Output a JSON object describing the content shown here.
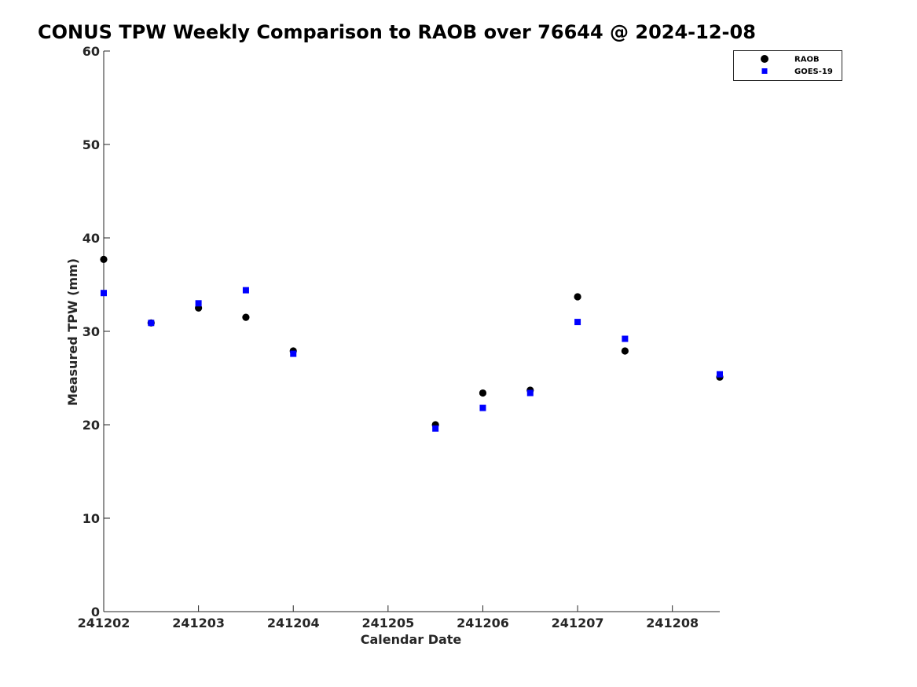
{
  "chart_data": {
    "type": "scatter",
    "title": "CONUS TPW Weekly Comparison to RAOB over 76644 @ 2024-12-08",
    "xlabel": "Calendar Date",
    "ylabel": "Measured TPW (mm)",
    "xlim": [
      0,
      6.5
    ],
    "ylim": [
      0,
      60
    ],
    "x_ticks": [
      {
        "value": 0,
        "label": "241202"
      },
      {
        "value": 1,
        "label": "241203"
      },
      {
        "value": 2,
        "label": "241204"
      },
      {
        "value": 3,
        "label": "241205"
      },
      {
        "value": 4,
        "label": "241206"
      },
      {
        "value": 5,
        "label": "241207"
      },
      {
        "value": 6,
        "label": "241208"
      }
    ],
    "y_ticks": [
      {
        "value": 0,
        "label": "0"
      },
      {
        "value": 10,
        "label": "10"
      },
      {
        "value": 20,
        "label": "20"
      },
      {
        "value": 30,
        "label": "30"
      },
      {
        "value": 40,
        "label": "40"
      },
      {
        "value": 50,
        "label": "50"
      },
      {
        "value": 60,
        "label": "60"
      }
    ],
    "grid": false,
    "legend_position": "top-right",
    "series": [
      {
        "name": "RAOB",
        "marker": "circle",
        "color": "#000000",
        "x": [
          0,
          0.5,
          1,
          1.5,
          2,
          3.5,
          4,
          4.5,
          5,
          5.5,
          6.5
        ],
        "y": [
          37.7,
          30.9,
          32.5,
          31.5,
          27.9,
          20.0,
          23.4,
          23.7,
          33.7,
          27.9,
          25.1
        ]
      },
      {
        "name": "GOES-19",
        "marker": "square",
        "color": "#0000ff",
        "x": [
          0,
          0.5,
          1,
          1.5,
          2,
          3.5,
          4,
          4.5,
          5,
          5.5,
          6.5
        ],
        "y": [
          34.1,
          30.9,
          33.0,
          34.4,
          27.6,
          19.6,
          21.8,
          23.4,
          31.0,
          29.2,
          25.4
        ]
      }
    ]
  }
}
